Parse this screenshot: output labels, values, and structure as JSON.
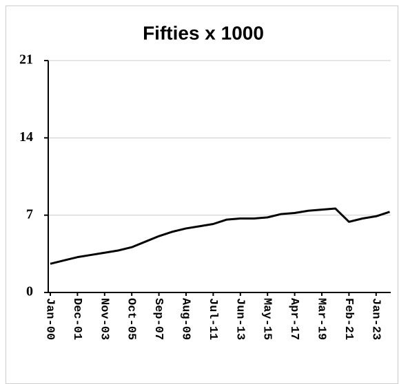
{
  "chart_data": {
    "type": "line",
    "title": "Fifties x 1000",
    "categories": [
      "Jan-00",
      null,
      "Dec-01",
      null,
      "Nov-03",
      null,
      "Oct-05",
      null,
      "Sep-07",
      null,
      "Aug-09",
      null,
      "Jul-11",
      null,
      "Jun-13",
      null,
      "May-15",
      null,
      "Apr-17",
      null,
      "Mar-19",
      null,
      "Feb-21",
      null,
      "Jan-23",
      null
    ],
    "series": [
      {
        "name": "Fifties",
        "color": "#000000",
        "values": [
          2.6,
          2.9,
          3.2,
          3.4,
          3.6,
          3.8,
          4.1,
          4.6,
          5.1,
          5.5,
          5.8,
          6.0,
          6.2,
          6.6,
          6.7,
          6.7,
          6.8,
          7.1,
          7.2,
          7.4,
          7.5,
          7.6,
          6.4,
          6.7,
          6.9,
          7.3
        ]
      }
    ],
    "ylim": [
      0,
      21
    ],
    "yticks": [
      0,
      7,
      14,
      21
    ],
    "grid": true
  }
}
